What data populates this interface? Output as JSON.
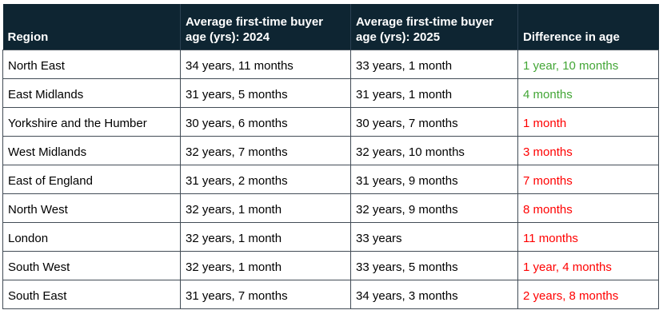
{
  "colors": {
    "header_bg": "#0e2532",
    "header_text": "#ffffff",
    "body_text": "#000000",
    "grid_border": "#424c56",
    "header_divider": "#2b4052",
    "row_bg": "#ffffff",
    "positive_green": "#43a636",
    "negative_red": "#ff0000"
  },
  "chart_data": {
    "type": "table",
    "columns": [
      "Region",
      "Average first-time buyer age (yrs): 2024",
      "Average first-time buyer age (yrs): 2025",
      "Difference in age"
    ],
    "rows": [
      {
        "region": "North East",
        "age_2024": "34 years, 11 months",
        "age_2025": "33 years, 1 month",
        "difference": "1 year, 10 months",
        "diff_color": "green"
      },
      {
        "region": "East Midlands",
        "age_2024": "31 years, 5 months",
        "age_2025": "31 years, 1 month",
        "difference": "4 months",
        "diff_color": "green"
      },
      {
        "region": "Yorkshire and the Humber",
        "age_2024": "30 years, 6 months",
        "age_2025": "30 years, 7 months",
        "difference": "1 month",
        "diff_color": "red"
      },
      {
        "region": "West Midlands",
        "age_2024": "32 years, 7 months",
        "age_2025": "32 years, 10 months",
        "difference": "3 months",
        "diff_color": "red"
      },
      {
        "region": "East of England",
        "age_2024": "31 years, 2 months",
        "age_2025": "31 years, 9 months",
        "difference": "7 months",
        "diff_color": "red"
      },
      {
        "region": "North West",
        "age_2024": "32 years, 1 month",
        "age_2025": "32 years, 9 months",
        "difference": "8 months",
        "diff_color": "red"
      },
      {
        "region": "London",
        "age_2024": "32 years, 1 month",
        "age_2025": "33 years",
        "difference": "11 months",
        "diff_color": "red"
      },
      {
        "region": "South West",
        "age_2024": "32 years, 1 month",
        "age_2025": "33 years, 5 months",
        "difference": "1 year, 4 months",
        "diff_color": "red"
      },
      {
        "region": "South East",
        "age_2024": "31 years, 7 months",
        "age_2025": "34 years, 3 months",
        "difference": "2 years, 8 months",
        "diff_color": "red"
      }
    ]
  }
}
